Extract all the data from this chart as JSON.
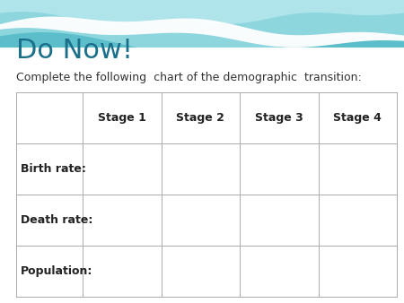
{
  "title": "Do Now!",
  "subtitle": "Complete the following  chart of the demographic  transition:",
  "title_color": "#1b6f8a",
  "subtitle_color": "#333333",
  "background_color": "#ffffff",
  "header_row": [
    "",
    "Stage 1",
    "Stage 2",
    "Stage 3",
    "Stage 4"
  ],
  "row_labels": [
    "Birth rate:",
    "Death rate:",
    "Population:"
  ],
  "table_text_color": "#222222",
  "wave_top_color": "#5bbeca",
  "wave_mid_color": "#8dd6de",
  "wave_light_color": "#c5eef3",
  "title_fontsize": 22,
  "subtitle_fontsize": 9,
  "table_fontsize": 9,
  "fig_width": 4.5,
  "fig_height": 3.38,
  "dpi": 100
}
